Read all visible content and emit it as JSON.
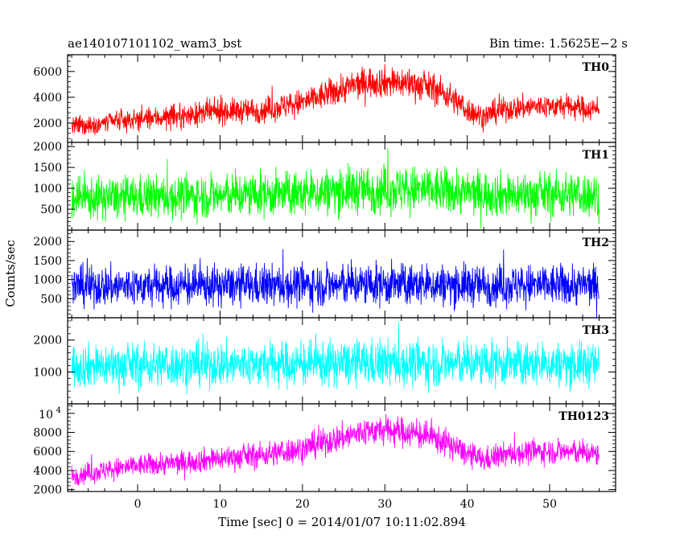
{
  "header": {
    "title": "ae140107101102_wam3_bst",
    "bin_time": "Bin time: 1.5625E−2 s"
  },
  "axes": {
    "ylabel": "Counts/sec",
    "xlabel": "Time [sec] 0 = 2014/01/07 10:11:02.894"
  },
  "chart_data": {
    "type": "line",
    "x_range": [
      -8.5,
      58
    ],
    "x_ticks": [
      0,
      10,
      20,
      30,
      40,
      50
    ],
    "x_tick_labels": [
      "0",
      "10",
      "20",
      "30",
      "40",
      "50"
    ],
    "data_x_range": [
      -8,
      56
    ],
    "panels": [
      {
        "name": "TH0",
        "color": "#ff0000",
        "ylim": [
          500,
          7300
        ],
        "y_ticks": [
          2000,
          4000,
          6000
        ],
        "y_tick_labels": [
          "2000",
          "4000",
          "6000"
        ],
        "envelope": {
          "x": [
            -8,
            -4,
            0,
            5,
            10,
            15,
            20,
            22,
            25,
            28,
            30,
            33,
            36,
            38,
            40,
            42,
            44,
            48,
            52,
            56
          ],
          "mean": [
            1700,
            2000,
            2300,
            2500,
            2900,
            3000,
            3600,
            4000,
            4700,
            5200,
            5200,
            5100,
            4700,
            4000,
            3000,
            2500,
            3000,
            3300,
            3300,
            3000
          ],
          "spread": [
            700,
            700,
            750,
            800,
            850,
            900,
            950,
            1000,
            1050,
            1100,
            1100,
            1100,
            1050,
            1000,
            900,
            850,
            850,
            850,
            850,
            850
          ]
        }
      },
      {
        "name": "TH1",
        "color": "#00ff00",
        "ylim": [
          0,
          2100
        ],
        "y_ticks": [
          500,
          1000,
          1500,
          2000
        ],
        "y_tick_labels": [
          "500",
          "1000",
          "1500",
          "2000"
        ],
        "envelope": {
          "x": [
            -8,
            0,
            10,
            20,
            25,
            30,
            35,
            40,
            45,
            50,
            56
          ],
          "mean": [
            750,
            780,
            820,
            880,
            950,
            980,
            960,
            900,
            850,
            850,
            850
          ],
          "spread": [
            450,
            460,
            470,
            490,
            510,
            520,
            510,
            490,
            480,
            480,
            480
          ]
        }
      },
      {
        "name": "TH2",
        "color": "#0000ff",
        "ylim": [
          0,
          2300
        ],
        "y_ticks": [
          500,
          1000,
          1500,
          2000
        ],
        "y_tick_labels": [
          "500",
          "1000",
          "1500",
          "2000"
        ],
        "envelope": {
          "x": [
            -8,
            0,
            10,
            20,
            30,
            40,
            50,
            56
          ],
          "mean": [
            820,
            830,
            840,
            850,
            870,
            860,
            850,
            850
          ],
          "spread": [
            480,
            480,
            480,
            490,
            500,
            490,
            490,
            490
          ]
        }
      },
      {
        "name": "TH3",
        "color": "#00ffff",
        "ylim": [
          0,
          2700
        ],
        "y_ticks": [
          1000,
          2000
        ],
        "y_tick_labels": [
          "1000",
          "2000"
        ],
        "envelope": {
          "x": [
            -8,
            0,
            10,
            20,
            30,
            40,
            50,
            56
          ],
          "mean": [
            1200,
            1210,
            1230,
            1250,
            1280,
            1260,
            1240,
            1230
          ],
          "spread": [
            620,
            620,
            630,
            640,
            650,
            640,
            630,
            630
          ]
        }
      },
      {
        "name": "TH0123",
        "color": "#ff00ff",
        "ylim": [
          1800,
          11000
        ],
        "y_ticks": [
          2000,
          4000,
          6000,
          8000,
          10000
        ],
        "y_tick_labels": [
          "2000",
          "4000",
          "6000",
          "8000",
          ""
        ],
        "y_tick_sci": {
          "value": 10000,
          "mantissa": "10",
          "exponent": "4"
        },
        "envelope": {
          "x": [
            -8,
            -4,
            0,
            5,
            10,
            15,
            20,
            22,
            25,
            28,
            30,
            33,
            36,
            38,
            40,
            42,
            44,
            48,
            52,
            56
          ],
          "mean": [
            3500,
            4000,
            4500,
            4800,
            5300,
            5600,
            6300,
            6800,
            7500,
            8200,
            8200,
            8000,
            7400,
            6700,
            5700,
            5100,
            5600,
            6000,
            6000,
            5700
          ],
          "spread": [
            1000,
            1000,
            1050,
            1100,
            1150,
            1200,
            1250,
            1300,
            1350,
            1400,
            1400,
            1400,
            1350,
            1300,
            1200,
            1150,
            1150,
            1150,
            1150,
            1150
          ]
        }
      }
    ]
  }
}
